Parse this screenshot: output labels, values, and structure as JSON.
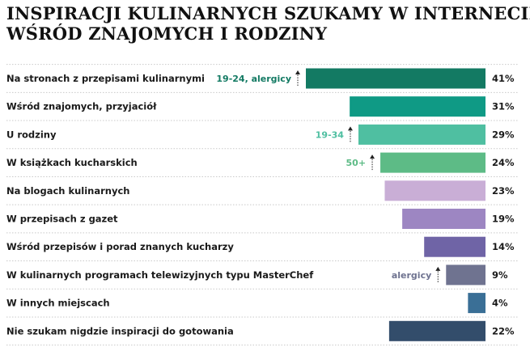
{
  "title_lines": [
    "INSPIRACJI KULINARNYCH SZUKAMY W INTERNECIE,",
    "WŚRÓD ZNAJOMYCH I RODZINY"
  ],
  "chart_data": {
    "type": "bar",
    "orientation": "horizontal",
    "title": "INSPIRACJI KULINARNYCH SZUKAMY W INTERNECIE, WŚRÓD ZNAJOMYCH I RODZINY",
    "unit": "%",
    "xlim": [
      0,
      41
    ],
    "categories": [
      "Na stronach z przepisami kulinarnymi",
      "Wśród znajomych, przyjaciół",
      "U rodziny",
      "W książkach kucharskich",
      "Na blogach kulinarnych",
      "W przepisach z gazet",
      "Wśród przepisów i porad znanych kucharzy",
      "W kulinarnych programach telewizyjnych typu MasterChef",
      "W innych miejscach",
      "Nie szukam nigdzie inspiracji do gotowania"
    ],
    "values": [
      41,
      31,
      29,
      24,
      23,
      19,
      14,
      9,
      4,
      22
    ],
    "value_labels": [
      "41%",
      "31%",
      "29%",
      "24%",
      "23%",
      "19%",
      "14%",
      "9%",
      "4%",
      "22%"
    ],
    "colors": [
      "#137a63",
      "#0f9a85",
      "#4fbfa1",
      "#5dbb86",
      "#c9aed6",
      "#9d86c2",
      "#6f64a6",
      "#6f7390",
      "#3a6f96",
      "#334d6b"
    ],
    "annotations": [
      {
        "row": 0,
        "text": "19-24, alergicy",
        "color": "#137a63",
        "arrow": "up"
      },
      {
        "row": 2,
        "text": "19-34",
        "color": "#4fbfa1",
        "arrow": "up"
      },
      {
        "row": 3,
        "text": "50+",
        "color": "#5dbb86",
        "arrow": "up"
      },
      {
        "row": 7,
        "text": "alergicy",
        "color": "#6f7390",
        "arrow": "up"
      }
    ],
    "grid": false,
    "legend": "none"
  }
}
